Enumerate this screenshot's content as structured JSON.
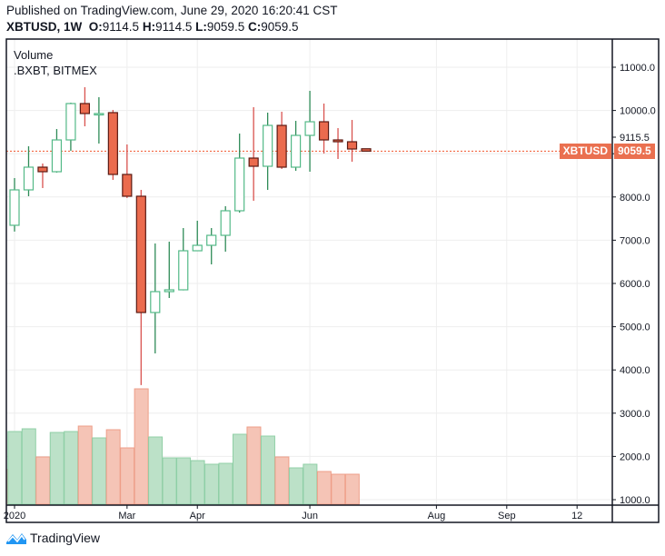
{
  "header": {
    "published": "Published on TradingView.com, June 29, 2020 16:20:41 CST",
    "symbol": "XBTUSD, 1W",
    "o_label": "O:",
    "o_value": "9114.5",
    "h_label": "H:",
    "h_value": "9114.5",
    "l_label": "L:",
    "l_value": "9059.5",
    "c_label": "C:",
    "c_value": "9059.5"
  },
  "legend": {
    "indicator": "Volume",
    "source": ".BXBT, BITMEX"
  },
  "price_tags": {
    "symbol": "XBTUSD",
    "last_price": "9059.5",
    "high_marker": "9115.5"
  },
  "branding": {
    "logo_text": "TradingView"
  },
  "colors": {
    "up": "#53b987",
    "down": "#eb6b4e",
    "down_border": "#5b1a13",
    "vol_up": "#bce1c8",
    "vol_down": "#f5c4b6",
    "last_line": "#f0552d"
  },
  "chart_data": {
    "type": "candlestick",
    "title": "XBTUSD, 1W",
    "ylim": [
      1000,
      11500
    ],
    "y_ticks": [
      "11000.0",
      "10000.0",
      "9000.0",
      "8000.0",
      "7000.0",
      "6000.0",
      "5000.0",
      "4000.0",
      "3000.0",
      "2000.0",
      "1000.0"
    ],
    "y_tick_values": [
      11000,
      10000,
      9000,
      8000,
      7000,
      6000,
      5000,
      4000,
      3000,
      2000,
      1000
    ],
    "x_ticks": [
      {
        "label": "2020",
        "bar_index": 0
      },
      {
        "label": "Mar",
        "bar_index": 8
      },
      {
        "label": "Apr",
        "bar_index": 13
      },
      {
        "label": "Jun",
        "bar_index": 21
      },
      {
        "label": "Aug",
        "bar_index": 30
      },
      {
        "label": "Sep",
        "bar_index": 35
      },
      {
        "label": "12",
        "bar_index": 40
      }
    ],
    "candles": [
      {
        "o": 7345,
        "h": 8437,
        "l": 7200,
        "c": 8164,
        "v": 80
      },
      {
        "o": 8164,
        "h": 9172,
        "l": 8017,
        "c": 8689,
        "v": 83
      },
      {
        "o": 8689,
        "h": 8773,
        "l": 8206,
        "c": 8584,
        "v": 52
      },
      {
        "o": 8584,
        "h": 9571,
        "l": 8563,
        "c": 9319,
        "v": 79
      },
      {
        "o": 9319,
        "h": 10181,
        "l": 9067,
        "c": 10160,
        "v": 80
      },
      {
        "o": 10160,
        "h": 10538,
        "l": 9634,
        "c": 9929,
        "v": 86
      },
      {
        "o": 9910,
        "h": 10307,
        "l": 9235,
        "c": 9929,
        "v": 73
      },
      {
        "o": 9950,
        "h": 10013,
        "l": 8395,
        "c": 8521,
        "v": 82
      },
      {
        "o": 8521,
        "h": 9214,
        "l": 7975,
        "c": 8017,
        "v": 62
      },
      {
        "o": 8017,
        "h": 8164,
        "l": 3650,
        "c": 5328,
        "v": 127
      },
      {
        "o": 5328,
        "h": 6924,
        "l": 4382,
        "c": 5811,
        "v": 74
      },
      {
        "o": 5811,
        "h": 6966,
        "l": 5664,
        "c": 5853,
        "v": 51
      },
      {
        "o": 5853,
        "h": 7281,
        "l": 5840,
        "c": 6756,
        "v": 51
      },
      {
        "o": 6756,
        "h": 7450,
        "l": 6750,
        "c": 6882,
        "v": 48
      },
      {
        "o": 6882,
        "h": 7281,
        "l": 6441,
        "c": 7113,
        "v": 44
      },
      {
        "o": 7113,
        "h": 7786,
        "l": 6735,
        "c": 7681,
        "v": 45
      },
      {
        "o": 7681,
        "h": 9466,
        "l": 7639,
        "c": 8899,
        "v": 77
      },
      {
        "o": 8899,
        "h": 10076,
        "l": 7912,
        "c": 8710,
        "v": 85
      },
      {
        "o": 8710,
        "h": 9950,
        "l": 8164,
        "c": 9655,
        "v": 75
      },
      {
        "o": 9655,
        "h": 9971,
        "l": 8647,
        "c": 8689,
        "v": 52
      },
      {
        "o": 8689,
        "h": 9760,
        "l": 8605,
        "c": 9424,
        "v": 40
      },
      {
        "o": 9424,
        "h": 10454,
        "l": 8584,
        "c": 9739,
        "v": 44
      },
      {
        "o": 9739,
        "h": 10160,
        "l": 9004,
        "c": 9319,
        "v": 36
      },
      {
        "o": 9319,
        "h": 9592,
        "l": 8878,
        "c": 9277,
        "v": 33
      },
      {
        "o": 9277,
        "h": 9781,
        "l": 8815,
        "c": 9109,
        "v": 33
      },
      {
        "o": 9114.5,
        "h": 9114.5,
        "l": 9059.5,
        "c": 9059.5,
        "v": null
      }
    ],
    "previous_volume_partial": {
      "v": 39,
      "direction": "down"
    },
    "volume_units": "relative",
    "last_price": 9059.5,
    "grid": true
  }
}
